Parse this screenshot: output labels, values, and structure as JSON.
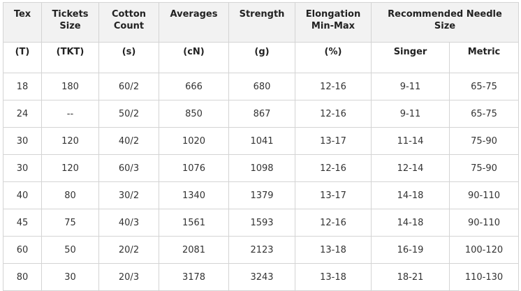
{
  "table": {
    "header": [
      {
        "lines": [
          "Tex"
        ]
      },
      {
        "lines": [
          "Tickets",
          "Size"
        ]
      },
      {
        "lines": [
          "Cotton",
          "Count"
        ]
      },
      {
        "lines": [
          "Averages"
        ]
      },
      {
        "lines": [
          "Strength"
        ]
      },
      {
        "lines": [
          "Elongation",
          "Min-Max"
        ]
      },
      {
        "lines": [
          "Recommended Needle",
          "Size"
        ]
      }
    ],
    "units": [
      "(T)",
      "(TKT)",
      "(s)",
      "(cN)",
      "(g)",
      "(%)",
      "Singer",
      "Metric"
    ],
    "rows": [
      [
        "18",
        "180",
        "60/2",
        "666",
        "680",
        "12-16",
        "9-11",
        "65-75"
      ],
      [
        "24",
        "--",
        "50/2",
        "850",
        "867",
        "12-16",
        "9-11",
        "65-75"
      ],
      [
        "30",
        "120",
        "40/2",
        "1020",
        "1041",
        "13-17",
        "11-14",
        "75-90"
      ],
      [
        "30",
        "120",
        "60/3",
        "1076",
        "1098",
        "12-16",
        "12-14",
        "75-90"
      ],
      [
        "40",
        "80",
        "30/2",
        "1340",
        "1379",
        "13-17",
        "14-18",
        "90-110"
      ],
      [
        "45",
        "75",
        "40/3",
        "1561",
        "1593",
        "12-16",
        "14-18",
        "90-110"
      ],
      [
        "60",
        "50",
        "20/2",
        "2081",
        "2123",
        "13-18",
        "16-19",
        "100-120"
      ],
      [
        "80",
        "30",
        "20/3",
        "3178",
        "3243",
        "13-18",
        "18-21",
        "110-130"
      ]
    ]
  }
}
